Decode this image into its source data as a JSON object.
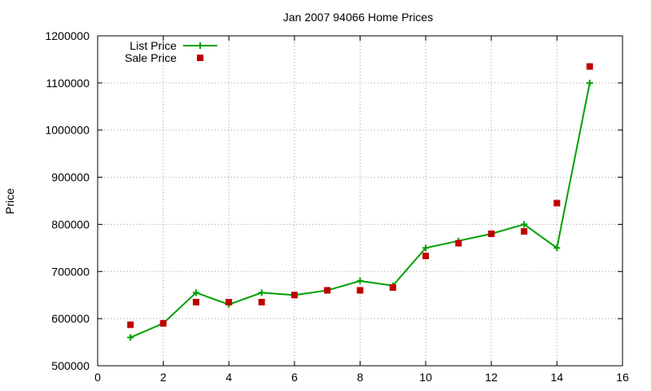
{
  "chart_data": {
    "type": "line",
    "title": "Jan 2007 94066 Home Prices",
    "xlabel": "",
    "ylabel": "Price",
    "xlim": [
      0,
      16
    ],
    "ylim": [
      500000,
      1200000
    ],
    "x_ticks": [
      0,
      2,
      4,
      6,
      8,
      10,
      12,
      14,
      16
    ],
    "y_ticks": [
      500000,
      600000,
      700000,
      800000,
      900000,
      1000000,
      1100000,
      1200000
    ],
    "grid": true,
    "legend_position": "top-left",
    "series": [
      {
        "name": "List Price",
        "style": "line-with-plus-markers",
        "color": "#00a000",
        "x": [
          1,
          2,
          3,
          4,
          5,
          6,
          7,
          8,
          9,
          10,
          11,
          12,
          13,
          14,
          15
        ],
        "y": [
          560000,
          590000,
          655000,
          630000,
          655000,
          650000,
          660000,
          680000,
          670000,
          750000,
          765000,
          780000,
          800000,
          750000,
          1100000
        ]
      },
      {
        "name": "Sale Price",
        "style": "square-markers",
        "color": "#c00000",
        "x": [
          1,
          2,
          3,
          4,
          5,
          6,
          7,
          8,
          9,
          10,
          11,
          12,
          13,
          14,
          15
        ],
        "y": [
          587000,
          590000,
          635000,
          635000,
          635000,
          650000,
          660000,
          660000,
          666000,
          733000,
          760000,
          780000,
          785000,
          845000,
          1135000
        ]
      }
    ]
  }
}
